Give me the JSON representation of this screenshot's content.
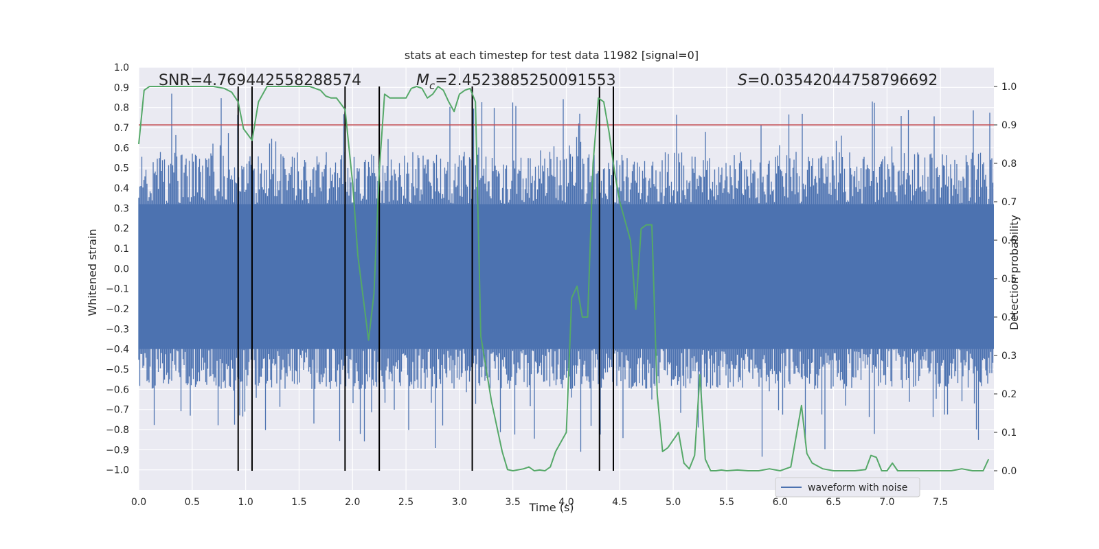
{
  "chart_data": {
    "type": "line",
    "title": "stats at each timestep for test data 11982 [signal=0]",
    "xlabel": "Time (s)",
    "ylabel_left": "Whitened strain",
    "ylabel_right": "Detection probability",
    "xlim": [
      0,
      8
    ],
    "ylim_left": [
      -1.1,
      1.0
    ],
    "ylim_right": [
      -0.05,
      1.05
    ],
    "xticks": [
      "0.0",
      "0.5",
      "1.0",
      "1.5",
      "2.0",
      "2.5",
      "3.0",
      "3.5",
      "4.0",
      "4.5",
      "5.0",
      "5.5",
      "6.0",
      "6.5",
      "7.0",
      "7.5"
    ],
    "yticks_left": [
      "1.0",
      "0.9",
      "0.8",
      "0.7",
      "0.6",
      "0.5",
      "0.4",
      "0.3",
      "0.2",
      "0.1",
      "0.0",
      "−0.1",
      "−0.2",
      "−0.3",
      "−0.4",
      "−0.5",
      "−0.6",
      "−0.7",
      "−0.8",
      "−0.9",
      "−1.0"
    ],
    "yticks_right": [
      "1.0",
      "0.9",
      "0.8",
      "0.7",
      "0.6",
      "0.5",
      "0.4",
      "0.3",
      "0.2",
      "0.1",
      "0.0"
    ],
    "grid": true,
    "legend": {
      "position": "bottom-right",
      "entries": [
        "waveform with noise"
      ]
    },
    "annotations": {
      "snr": "SNR=4.769442558288574",
      "mc_symbol": "M",
      "mc_sub": "c",
      "mc_value": "=2.4523885250091553",
      "s_symbol": "S",
      "s_value": "=0.03542044758796692"
    },
    "threshold": 0.9,
    "vlines": [
      0.93,
      1.06,
      1.93,
      2.25,
      3.12,
      4.31,
      4.44
    ],
    "series": [
      {
        "name": "waveform with noise",
        "color": "#4c72b0",
        "description": "whitened strain noise, core band about ±0.45 with spikes to about ±0.9",
        "band": [
          -0.45,
          0.45
        ],
        "peak": [
          -0.98,
          0.92
        ]
      },
      {
        "color": "#55a868",
        "x": [
          0.0,
          0.05,
          0.1,
          0.2,
          0.3,
          0.5,
          0.7,
          0.8,
          0.87,
          0.93,
          0.98,
          1.06,
          1.12,
          1.2,
          1.3,
          1.5,
          1.6,
          1.7,
          1.75,
          1.8,
          1.85,
          1.93,
          2.0,
          2.05,
          2.1,
          2.15,
          2.2,
          2.25,
          2.3,
          2.35,
          2.4,
          2.5,
          2.55,
          2.6,
          2.65,
          2.7,
          2.75,
          2.8,
          2.85,
          2.9,
          2.95,
          3.0,
          3.05,
          3.1,
          3.15,
          3.2,
          3.3,
          3.4,
          3.45,
          3.5,
          3.6,
          3.65,
          3.7,
          3.75,
          3.8,
          3.85,
          3.9,
          4.0,
          4.05,
          4.1,
          4.15,
          4.2,
          4.25,
          4.3,
          4.35,
          4.4,
          4.45,
          4.5,
          4.6,
          4.65,
          4.7,
          4.75,
          4.8,
          4.85,
          4.9,
          4.95,
          5.0,
          5.05,
          5.1,
          5.15,
          5.2,
          5.25,
          5.3,
          5.35,
          5.4,
          5.45,
          5.5,
          5.6,
          5.7,
          5.8,
          5.9,
          6.0,
          6.1,
          6.2,
          6.25,
          6.3,
          6.4,
          6.5,
          6.6,
          6.7,
          6.8,
          6.85,
          6.9,
          6.95,
          7.0,
          7.05,
          7.1,
          7.15,
          7.2,
          7.3,
          7.4,
          7.5,
          7.6,
          7.7,
          7.8,
          7.9,
          7.95
        ],
        "y": [
          0.85,
          0.99,
          1.0,
          1.0,
          1.0,
          1.0,
          1.0,
          0.995,
          0.985,
          0.96,
          0.89,
          0.86,
          0.96,
          1.0,
          1.0,
          1.0,
          1.0,
          0.99,
          0.975,
          0.97,
          0.97,
          0.94,
          0.75,
          0.56,
          0.45,
          0.34,
          0.46,
          0.78,
          0.98,
          0.97,
          0.97,
          0.97,
          0.995,
          1.0,
          0.995,
          0.97,
          0.98,
          1.0,
          0.99,
          0.96,
          0.935,
          0.98,
          0.99,
          0.995,
          0.96,
          0.35,
          0.18,
          0.05,
          0.003,
          0.0,
          0.005,
          0.01,
          0.0,
          0.002,
          0.0,
          0.01,
          0.05,
          0.1,
          0.45,
          0.48,
          0.4,
          0.4,
          0.8,
          0.97,
          0.96,
          0.88,
          0.78,
          0.7,
          0.6,
          0.42,
          0.63,
          0.64,
          0.64,
          0.2,
          0.05,
          0.06,
          0.08,
          0.1,
          0.02,
          0.005,
          0.04,
          0.25,
          0.03,
          0.0,
          0.0,
          0.002,
          0.0,
          0.002,
          0.0,
          0.0,
          0.005,
          0.0,
          0.01,
          0.17,
          0.045,
          0.02,
          0.005,
          0.0,
          0.0,
          0.0,
          0.003,
          0.04,
          0.035,
          0.0,
          0.0,
          0.02,
          0.0,
          0.0,
          0.0,
          0.0,
          0.0,
          0.0,
          0.0,
          0.005,
          0.0,
          0.0,
          0.03
        ]
      }
    ]
  },
  "colors": {
    "plot_background": "#eaeaf2",
    "grid": "#ffffff",
    "strain": "#4c72b0",
    "probability": "#55a868",
    "threshold": "#c44e52",
    "vline": "#000000"
  }
}
